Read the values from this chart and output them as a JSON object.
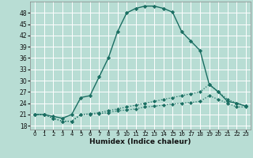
{
  "xlabel": "Humidex (Indice chaleur)",
  "bg_color": "#b8ddd4",
  "grid_color": "#ffffff",
  "line_color": "#1a6e62",
  "xlim": [
    -0.5,
    23.5
  ],
  "ylim": [
    17,
    51
  ],
  "yticks": [
    18,
    21,
    24,
    27,
    30,
    33,
    36,
    39,
    42,
    45,
    48
  ],
  "xticks": [
    0,
    1,
    2,
    3,
    4,
    5,
    6,
    7,
    8,
    9,
    10,
    11,
    12,
    13,
    14,
    15,
    16,
    17,
    18,
    19,
    20,
    21,
    22,
    23
  ],
  "series": [
    {
      "x": [
        0,
        1,
        2,
        3,
        4,
        5,
        6,
        7,
        8,
        9,
        10,
        11,
        12,
        13,
        14,
        15,
        16,
        17,
        18,
        19,
        20,
        21,
        22,
        23
      ],
      "y": [
        21,
        21,
        20.5,
        20,
        21,
        25.5,
        26,
        31,
        36,
        43,
        48,
        49.2,
        49.8,
        49.8,
        49.2,
        48.2,
        43,
        40.5,
        38,
        29,
        27,
        24.5,
        24,
        23.2
      ],
      "linestyle": "-",
      "marker": "D",
      "markersize": 2.2,
      "linewidth": 1.0
    },
    {
      "x": [
        0,
        1,
        2,
        3,
        4,
        5,
        6,
        7,
        8,
        9,
        10,
        11,
        12,
        13,
        14,
        15,
        16,
        17,
        18,
        19,
        20,
        21,
        22,
        23
      ],
      "y": [
        21,
        21,
        20,
        19.2,
        19.2,
        21,
        21.2,
        21.5,
        22,
        22.5,
        23,
        23.5,
        24,
        24.5,
        25,
        25.5,
        26,
        26.5,
        27,
        29,
        27,
        25,
        24,
        23.2
      ],
      "linestyle": ":",
      "marker": "D",
      "markersize": 2.0,
      "linewidth": 0.9
    },
    {
      "x": [
        0,
        1,
        2,
        3,
        4,
        5,
        6,
        7,
        8,
        9,
        10,
        11,
        12,
        13,
        14,
        15,
        16,
        17,
        18,
        19,
        20,
        21,
        22,
        23
      ],
      "y": [
        21,
        21,
        20,
        19.2,
        19.2,
        21,
        21,
        21.2,
        21.5,
        22,
        22.2,
        22.5,
        23,
        23.2,
        23.5,
        23.8,
        24,
        24.2,
        24.5,
        26,
        25,
        24,
        23,
        23
      ],
      "linestyle": ":",
      "marker": "D",
      "markersize": 2.0,
      "linewidth": 0.9
    }
  ]
}
